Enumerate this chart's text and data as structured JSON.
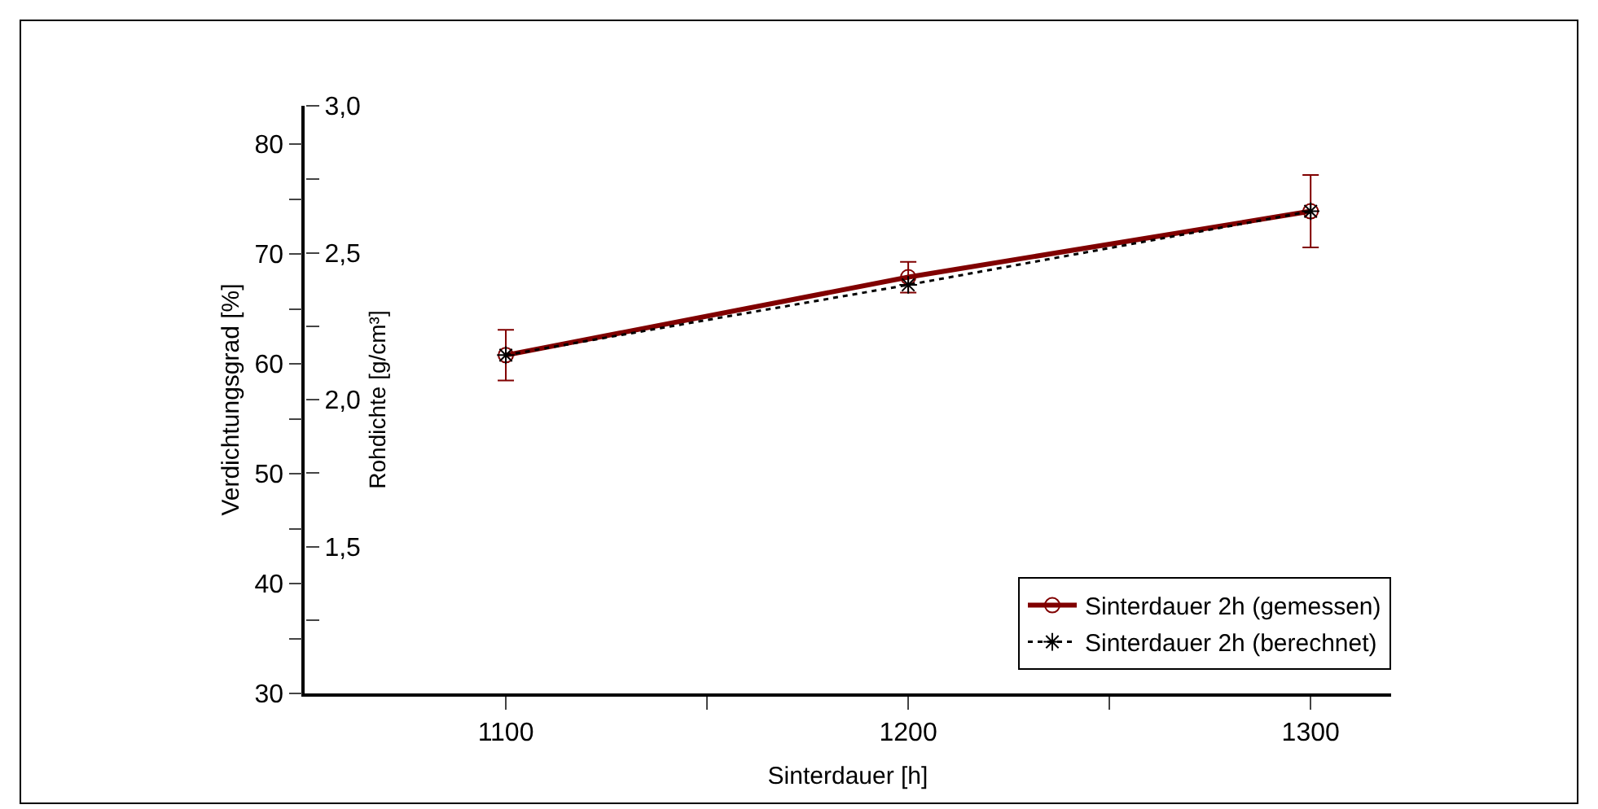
{
  "chart_data": {
    "type": "line",
    "xlabel": "Sinterdauer [h]",
    "ylabel": "Verdichtungsgrad [%]",
    "y2label": "Rohdichte [g/cm³]",
    "x": [
      1100,
      1200,
      1300
    ],
    "series": [
      {
        "name": "Sinterdauer 2h (gemessen)",
        "color": "#800000",
        "values": [
          60.8,
          67.9,
          73.9
        ],
        "errors": [
          2.3,
          1.4,
          3.3
        ],
        "marker": "circle",
        "line_style": "solid"
      },
      {
        "name": "Sinterdauer 2h (berechnet)",
        "color": "#000000",
        "values": [
          60.8,
          67.2,
          73.9
        ],
        "marker": "cross",
        "line_style": "dotted"
      }
    ],
    "xlim": [
      1050,
      1320
    ],
    "xticks": [
      1100,
      {
        "value": 1150,
        "label": null
      },
      1200,
      {
        "value": 1250,
        "label": null
      },
      1300
    ],
    "ylim": [
      30,
      83.5
    ],
    "yticks": [
      30,
      {
        "value": 35,
        "label": null
      },
      40,
      {
        "value": 45,
        "label": null
      },
      50,
      {
        "value": 55,
        "label": null
      },
      60,
      {
        "value": 65,
        "label": null
      },
      70,
      {
        "value": 75,
        "label": null
      },
      80
    ],
    "y2lim": [
      1.0,
      3.0
    ],
    "y2ticks": [
      {
        "value": 1.25,
        "label": null
      },
      {
        "value": 1.5,
        "label": "1,5"
      },
      {
        "value": 1.75,
        "label": null
      },
      {
        "value": 2.0,
        "label": "2,0"
      },
      {
        "value": 2.25,
        "label": null
      },
      {
        "value": 2.5,
        "label": "2,5"
      },
      {
        "value": 2.75,
        "label": null
      },
      {
        "value": 3.0,
        "label": "3,0"
      }
    ],
    "legend": "bottom right"
  }
}
